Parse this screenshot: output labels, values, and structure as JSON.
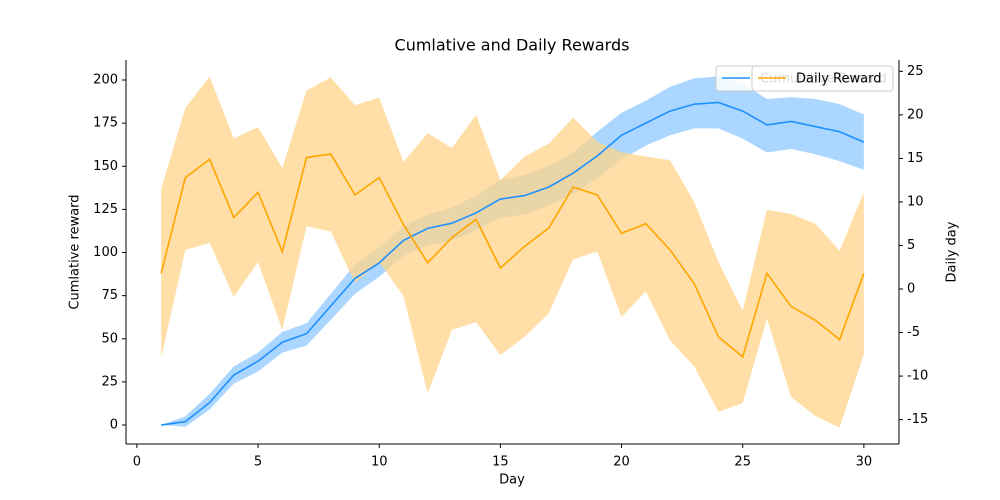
{
  "chart_data": {
    "type": "line",
    "title": "Cumlative and Daily Rewards",
    "x_label": "Day",
    "y_label": "Cumlative reward",
    "y2_label": "Daily day",
    "x": [
      1,
      2,
      3,
      4,
      5,
      6,
      7,
      8,
      9,
      10,
      11,
      12,
      13,
      14,
      15,
      16,
      17,
      18,
      19,
      20,
      21,
      22,
      23,
      24,
      25,
      26,
      27,
      28,
      29,
      30
    ],
    "xlim": [
      -0.45,
      31.45
    ],
    "xticks": [
      0,
      5,
      10,
      15,
      20,
      25,
      30
    ],
    "ylim": [
      -11,
      211.6
    ],
    "yticks": [
      0,
      25,
      50,
      75,
      100,
      125,
      150,
      175,
      200
    ],
    "y2lim": [
      -17.8,
      26.3
    ],
    "y2ticks": [
      -15,
      -10,
      -5,
      0,
      5,
      10,
      15,
      20,
      25
    ],
    "legend": "upper right",
    "series": [
      {
        "name": "Cumulative Reward",
        "color": "#1e90ff",
        "band_color": "#8ec8ff",
        "axis": "y",
        "values": [
          0,
          2,
          13,
          29,
          37,
          48,
          53,
          69,
          85,
          94,
          107,
          114,
          117,
          123,
          131,
          133,
          138,
          146,
          156,
          168,
          175,
          182,
          186,
          187,
          182,
          174,
          176,
          173,
          170,
          164
        ],
        "lower": [
          0,
          -1,
          9,
          24,
          31,
          42,
          46,
          61,
          76,
          86,
          98,
          104,
          107,
          113,
          120,
          122,
          127,
          134,
          143,
          154,
          162,
          168,
          172,
          172,
          166,
          158,
          160,
          157,
          153,
          148
        ],
        "upper": [
          0,
          5,
          18,
          34,
          42,
          54,
          59,
          76,
          93,
          103,
          115,
          122,
          126,
          133,
          142,
          145,
          150,
          158,
          170,
          181,
          188,
          196,
          201,
          202,
          198,
          189,
          190,
          189,
          186,
          180
        ]
      },
      {
        "name": "Daily Reward",
        "color": "#ffa500",
        "band_color": "#ffd48a",
        "axis": "y2",
        "values": [
          1.8,
          12.8,
          14.9,
          8.2,
          11.1,
          4.3,
          15.1,
          15.5,
          10.8,
          12.8,
          7.4,
          3.0,
          5.9,
          8.0,
          2.4,
          4.9,
          7.0,
          11.7,
          10.8,
          6.4,
          7.5,
          4.5,
          0.6,
          -5.5,
          -7.8,
          1.8,
          -2.0,
          -3.6,
          -5.8,
          1.8
        ],
        "lower": [
          -7.9,
          4.5,
          5.3,
          -0.9,
          3.1,
          -4.7,
          7.2,
          6.6,
          0.7,
          3.1,
          -0.8,
          -12.0,
          -4.7,
          -3.8,
          -7.6,
          -5.5,
          -2.8,
          3.4,
          4.3,
          -3.2,
          -0.3,
          -5.9,
          -8.9,
          -14.1,
          -13.1,
          -3.4,
          -12.4,
          -14.6,
          -15.9,
          -7.5
        ],
        "upper": [
          11.5,
          20.8,
          24.4,
          17.3,
          18.6,
          13.9,
          22.8,
          24.3,
          21.1,
          22.0,
          14.6,
          17.9,
          16.2,
          20.0,
          12.5,
          15.2,
          16.7,
          19.7,
          16.9,
          15.7,
          15.2,
          14.8,
          10.0,
          3.1,
          -2.5,
          9.1,
          8.6,
          7.5,
          4.4,
          11.1
        ]
      }
    ]
  }
}
